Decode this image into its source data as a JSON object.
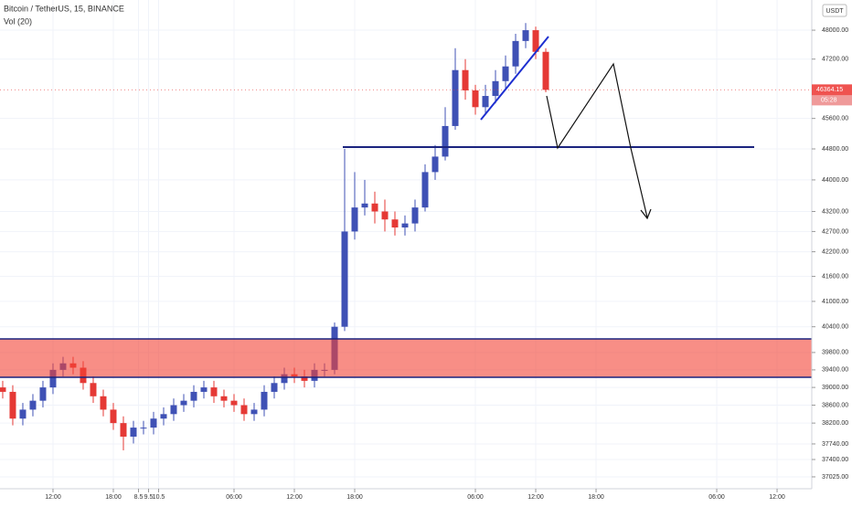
{
  "chart_data": {
    "type": "candlestick",
    "title": "Bitcoin / TetherUS, 15, BINANCE",
    "indicator": "Vol (20)",
    "currency": "USDT",
    "countdown": "05:28",
    "x": [
      -5,
      -4,
      -3,
      -2,
      -1,
      0,
      1,
      2,
      3,
      4,
      5,
      6,
      7,
      8,
      9,
      10,
      11,
      12,
      13,
      14,
      15,
      16,
      17,
      18,
      19,
      20,
      21,
      22,
      23,
      24,
      25,
      26,
      27,
      28,
      29,
      30,
      31,
      32,
      33,
      34,
      35,
      36,
      37,
      38,
      39,
      40,
      41,
      42,
      43,
      44,
      45,
      46,
      47,
      48,
      49
    ],
    "open": [
      39000,
      38900,
      38300,
      38500,
      38700,
      39000,
      39400,
      39550,
      39450,
      39100,
      38800,
      38500,
      38200,
      37900,
      38100,
      38100,
      38300,
      38400,
      38600,
      38700,
      38900,
      39000,
      38800,
      38700,
      38600,
      38400,
      38500,
      38900,
      39100,
      39300,
      39250,
      39150,
      39400,
      39400,
      40400,
      42700,
      43300,
      43400,
      43200,
      43000,
      42800,
      42900,
      43300,
      44200,
      44600,
      45400,
      46900,
      46350,
      45900,
      46200,
      46600,
      47000,
      47700,
      48000,
      47400
    ],
    "high": [
      39150,
      39050,
      38650,
      38850,
      39150,
      39550,
      39700,
      39700,
      39600,
      39250,
      38950,
      38650,
      38350,
      38250,
      38250,
      38450,
      38550,
      38750,
      38850,
      39050,
      39150,
      39150,
      38950,
      38850,
      38750,
      38650,
      39050,
      39250,
      39450,
      39450,
      39400,
      39550,
      39550,
      40500,
      44800,
      44200,
      44000,
      43700,
      43500,
      43200,
      43100,
      43500,
      44400,
      44900,
      45900,
      47500,
      47200,
      46500,
      46500,
      46900,
      47300,
      47900,
      48200,
      48100,
      47500
    ],
    "low": [
      38750,
      38150,
      38150,
      38350,
      38550,
      38850,
      39250,
      39300,
      38950,
      38650,
      38350,
      38050,
      37600,
      37750,
      37950,
      37950,
      38150,
      38250,
      38450,
      38550,
      38750,
      38650,
      38550,
      38450,
      38250,
      38250,
      38350,
      38750,
      38950,
      39100,
      39000,
      39000,
      39250,
      39300,
      40300,
      42500,
      43100,
      42900,
      42700,
      42600,
      42600,
      42700,
      43200,
      44000,
      44500,
      45300,
      46100,
      45700,
      45700,
      46000,
      46400,
      46800,
      47500,
      47200,
      46300
    ],
    "close": [
      38900,
      38300,
      38500,
      38700,
      39000,
      39400,
      39550,
      39450,
      39100,
      38800,
      38500,
      38200,
      37900,
      38100,
      38100,
      38300,
      38400,
      38600,
      38700,
      38900,
      39000,
      38800,
      38700,
      38600,
      38400,
      38500,
      38900,
      39100,
      39300,
      39250,
      39150,
      39400,
      39400,
      40400,
      42700,
      43300,
      43400,
      43200,
      43000,
      42800,
      42900,
      43300,
      44200,
      44600,
      45400,
      46900,
      46350,
      45900,
      46200,
      46600,
      47000,
      47700,
      48000,
      47400,
      46364.15
    ],
    "up_color": "#3f51b5",
    "down_color": "#e53935",
    "log_scale": true,
    "grid": true,
    "xlim": [
      -5.27,
      75.45
    ],
    "ylim": [
      36770,
      48850
    ],
    "xticks": [
      {
        "value": 0,
        "label": "12:00"
      },
      {
        "value": 6,
        "label": "18:00"
      },
      8.5,
      {
        "value": 18,
        "label": "06:00"
      },
      {
        "value": 24,
        "label": "12:00"
      },
      {
        "value": 30,
        "label": "18:00"
      },
      9.5,
      {
        "value": 42,
        "label": "06:00"
      },
      {
        "value": 48,
        "label": "12:00"
      },
      {
        "value": 54,
        "label": "18:00"
      },
      10.5,
      {
        "value": 66,
        "label": "06:00"
      },
      {
        "value": 72,
        "label": "12:00"
      }
    ],
    "yticks": [
      {
        "value": 37025,
        "label": "37025.00"
      },
      {
        "value": 37400,
        "label": "37400.00"
      },
      {
        "value": 37740,
        "label": "37740.00"
      },
      {
        "value": 38200,
        "label": "38200.00"
      },
      {
        "value": 38600,
        "label": "38600.00"
      },
      {
        "value": 39000,
        "label": "39000.00"
      },
      {
        "value": 39400,
        "label": "39400.00"
      },
      {
        "value": 39800,
        "label": "39800.00"
      },
      {
        "value": 40400,
        "label": "40400.00"
      },
      {
        "value": 41000,
        "label": "41000.00"
      },
      {
        "value": 41600,
        "label": "41600.00"
      },
      {
        "value": 42200,
        "label": "42200.00"
      },
      {
        "value": 42700,
        "label": "42700.00"
      },
      {
        "value": 43200,
        "label": "43200.00"
      },
      {
        "value": 44000,
        "label": "44000.00"
      },
      {
        "value": 44800,
        "label": "44800.00"
      },
      {
        "value": 45600,
        "label": "45600.00"
      },
      {
        "value": 47200,
        "label": "47200.00"
      },
      {
        "value": 48000,
        "label": "48000.00"
      }
    ]
  }
}
